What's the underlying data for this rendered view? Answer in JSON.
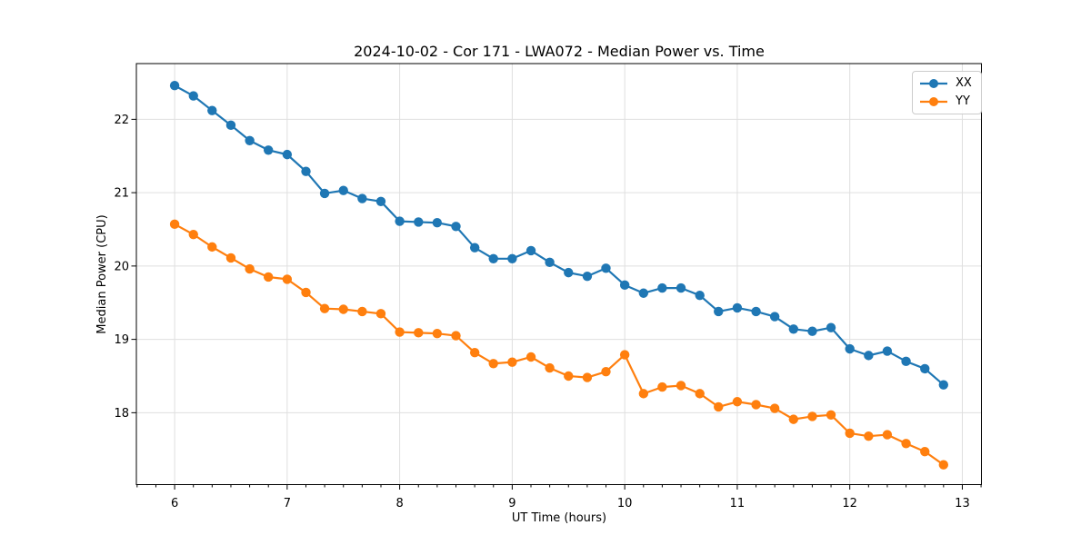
{
  "chart_data": {
    "type": "line",
    "title": "2024-10-02 - Cor 171 - LWA072 - Median Power vs. Time",
    "xlabel": "UT Time (hours)",
    "ylabel": "Median Power (CPU)",
    "legend_position": "upper-right",
    "grid": true,
    "grid_color": "#dfdfdf",
    "axis_color": "#000000",
    "background": "#ffffff",
    "xlim": [
      5.66,
      13.17
    ],
    "ylim": [
      17.02,
      22.76
    ],
    "xticks": [
      6,
      7,
      8,
      9,
      10,
      11,
      12,
      13
    ],
    "yticks": [
      18,
      19,
      20,
      21,
      22
    ],
    "minor_xtick_step_hours": 0.1667,
    "x": [
      6.0,
      6.167,
      6.333,
      6.5,
      6.667,
      6.833,
      7.0,
      7.167,
      7.333,
      7.5,
      7.667,
      7.833,
      8.0,
      8.167,
      8.333,
      8.5,
      8.667,
      8.833,
      9.0,
      9.167,
      9.333,
      9.5,
      9.667,
      9.833,
      10.0,
      10.167,
      10.333,
      10.5,
      10.667,
      10.833,
      11.0,
      11.167,
      11.333,
      11.5,
      11.667,
      11.833,
      12.0,
      12.167,
      12.333,
      12.5,
      12.667,
      12.833
    ],
    "series": [
      {
        "name": "XX",
        "color": "#1f77b4",
        "marker": "circle",
        "values": [
          22.46,
          22.32,
          22.12,
          21.92,
          21.71,
          21.58,
          21.52,
          21.29,
          20.99,
          21.03,
          20.92,
          20.88,
          20.61,
          20.6,
          20.59,
          20.54,
          20.25,
          20.1,
          20.1,
          20.21,
          20.05,
          19.91,
          19.86,
          19.97,
          19.74,
          19.63,
          19.7,
          19.7,
          19.6,
          19.38,
          19.43,
          19.38,
          19.31,
          19.14,
          19.11,
          19.16,
          18.87,
          18.78,
          18.84,
          18.7,
          18.6,
          18.38
        ]
      },
      {
        "name": "YY",
        "color": "#ff7f0e",
        "marker": "circle",
        "values": [
          20.57,
          20.43,
          20.26,
          20.11,
          19.96,
          19.85,
          19.82,
          19.64,
          19.42,
          19.41,
          19.38,
          19.35,
          19.1,
          19.09,
          19.08,
          19.05,
          18.82,
          18.67,
          18.69,
          18.76,
          18.61,
          18.5,
          18.48,
          18.56,
          18.79,
          18.26,
          18.35,
          18.37,
          18.26,
          18.08,
          18.15,
          18.11,
          18.06,
          17.91,
          17.95,
          17.97,
          17.72,
          17.68,
          17.7,
          17.58,
          17.47,
          17.29
        ]
      }
    ]
  }
}
